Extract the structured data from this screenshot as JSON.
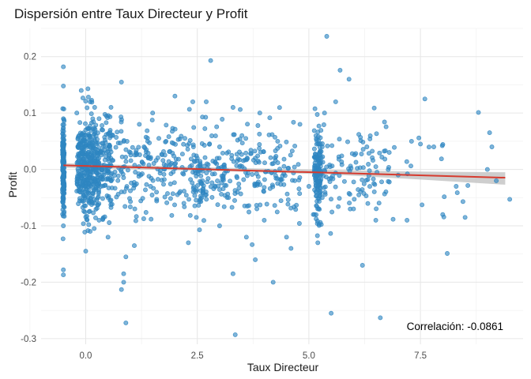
{
  "chart_data": {
    "type": "scatter",
    "title": "Dispersión entre Taux Directeur y Profit",
    "xlabel": "Taux Directeur",
    "ylabel": "Profit",
    "xlim": [
      -1.0,
      9.8
    ],
    "ylim": [
      -0.31,
      0.25
    ],
    "x_ticks": [
      0.0,
      2.5,
      5.0,
      7.5
    ],
    "x_tick_labels": [
      "0.0",
      "2.5",
      "5.0",
      "7.5"
    ],
    "y_ticks": [
      -0.3,
      -0.2,
      -0.1,
      0.0,
      0.1,
      0.2
    ],
    "y_tick_labels": [
      "-0.3",
      "-0.2",
      "-0.1",
      "0.0",
      "0.1",
      "0.2"
    ],
    "grid": true,
    "annotation": "Correlación: -0.0861",
    "colors": {
      "points": "#2e86c1",
      "regression": "#d63b2f",
      "confidence_band": "#bdbdbd"
    },
    "regression": {
      "intercept": 0.0062,
      "slope": -0.00222,
      "x_range": [
        -0.5,
        9.4
      ]
    },
    "confidence_band": [
      {
        "x": -0.5,
        "lower": 0.003,
        "upper": 0.011
      },
      {
        "x": 3.0,
        "lower": -0.003,
        "upper": 0.003
      },
      {
        "x": 5.5,
        "lower": -0.009,
        "upper": -0.001
      },
      {
        "x": 7.5,
        "lower": -0.018,
        "upper": -0.004
      },
      {
        "x": 9.4,
        "lower": -0.027,
        "upper": -0.005
      }
    ],
    "points": [
      [
        -0.5,
        0.182
      ],
      [
        -0.5,
        0.148
      ],
      [
        -0.5,
        0.09
      ],
      [
        -0.5,
        0.05
      ],
      [
        -0.5,
        0.02
      ],
      [
        -0.5,
        -0.01
      ],
      [
        -0.5,
        -0.05
      ],
      [
        -0.5,
        -0.1
      ],
      [
        -0.5,
        -0.178
      ],
      [
        -0.5,
        -0.187
      ],
      [
        -0.1,
        0.14
      ],
      [
        0.05,
        0.143
      ],
      [
        0.1,
        0.12
      ],
      [
        0.2,
        0.11
      ],
      [
        -0.2,
        0.1
      ],
      [
        0.3,
        0.09
      ],
      [
        0.0,
        0.07
      ],
      [
        0.1,
        0.04
      ],
      [
        0.2,
        0.02
      ],
      [
        -0.1,
        0.01
      ],
      [
        0.4,
        -0.01
      ],
      [
        0.0,
        -0.03
      ],
      [
        0.2,
        -0.06
      ],
      [
        0.3,
        -0.09
      ],
      [
        0.1,
        -0.11
      ],
      [
        0.5,
        -0.12
      ],
      [
        0.0,
        -0.145
      ],
      [
        0.6,
        0.06
      ],
      [
        0.8,
        -0.04
      ],
      [
        1.0,
        0.03
      ],
      [
        1.1,
        -0.07
      ],
      [
        1.2,
        0.08
      ],
      [
        1.4,
        0.02
      ],
      [
        0.8,
        0.155
      ],
      [
        0.9,
        -0.155
      ],
      [
        0.85,
        -0.185
      ],
      [
        0.85,
        -0.2
      ],
      [
        0.8,
        -0.213
      ],
      [
        0.9,
        -0.272
      ],
      [
        1.5,
        0.1
      ],
      [
        1.8,
        0.05
      ],
      [
        2.0,
        0.13
      ],
      [
        2.2,
        -0.06
      ],
      [
        2.4,
        0.12
      ],
      [
        2.3,
        -0.13
      ],
      [
        2.6,
        -0.05
      ],
      [
        2.7,
        0.12
      ],
      [
        2.8,
        0.193
      ],
      [
        3.0,
        0.04
      ],
      [
        3.0,
        -0.1
      ],
      [
        3.2,
        -0.05
      ],
      [
        3.3,
        0.11
      ],
      [
        3.3,
        -0.185
      ],
      [
        3.35,
        -0.293
      ],
      [
        3.5,
        0.06
      ],
      [
        3.6,
        -0.12
      ],
      [
        3.8,
        0.02
      ],
      [
        3.8,
        -0.16
      ],
      [
        3.9,
        0.1
      ],
      [
        4.0,
        -0.09
      ],
      [
        4.2,
        -0.2
      ],
      [
        4.3,
        0.05
      ],
      [
        4.5,
        -0.12
      ],
      [
        4.6,
        -0.14
      ],
      [
        4.8,
        0.08
      ],
      [
        5.0,
        -0.03
      ],
      [
        5.1,
        -0.08
      ],
      [
        5.2,
        -0.13
      ],
      [
        5.3,
        0.04
      ],
      [
        5.3,
        -0.05
      ],
      [
        5.35,
        0.1
      ],
      [
        5.4,
        0.236
      ],
      [
        5.5,
        -0.255
      ],
      [
        5.6,
        0.12
      ],
      [
        5.7,
        0.176
      ],
      [
        5.9,
        0.16
      ],
      [
        6.0,
        -0.07
      ],
      [
        6.2,
        -0.17
      ],
      [
        6.3,
        0.04
      ],
      [
        6.5,
        -0.09
      ],
      [
        6.6,
        -0.263
      ],
      [
        6.8,
        0.03
      ],
      [
        7.0,
        -0.01
      ],
      [
        7.2,
        -0.09
      ],
      [
        7.3,
        0.05
      ],
      [
        7.5,
        0.045
      ],
      [
        7.6,
        0.125
      ],
      [
        7.8,
        0.04
      ],
      [
        8.0,
        -0.08
      ],
      [
        8.1,
        -0.149
      ],
      [
        8.3,
        -0.03
      ],
      [
        8.5,
        -0.085
      ],
      [
        8.8,
        0.101
      ],
      [
        9.0,
        -0.0
      ],
      [
        9.05,
        0.065
      ],
      [
        9.1,
        0.04
      ],
      [
        9.2,
        -0.02
      ],
      [
        9.5,
        -0.053
      ]
    ]
  }
}
